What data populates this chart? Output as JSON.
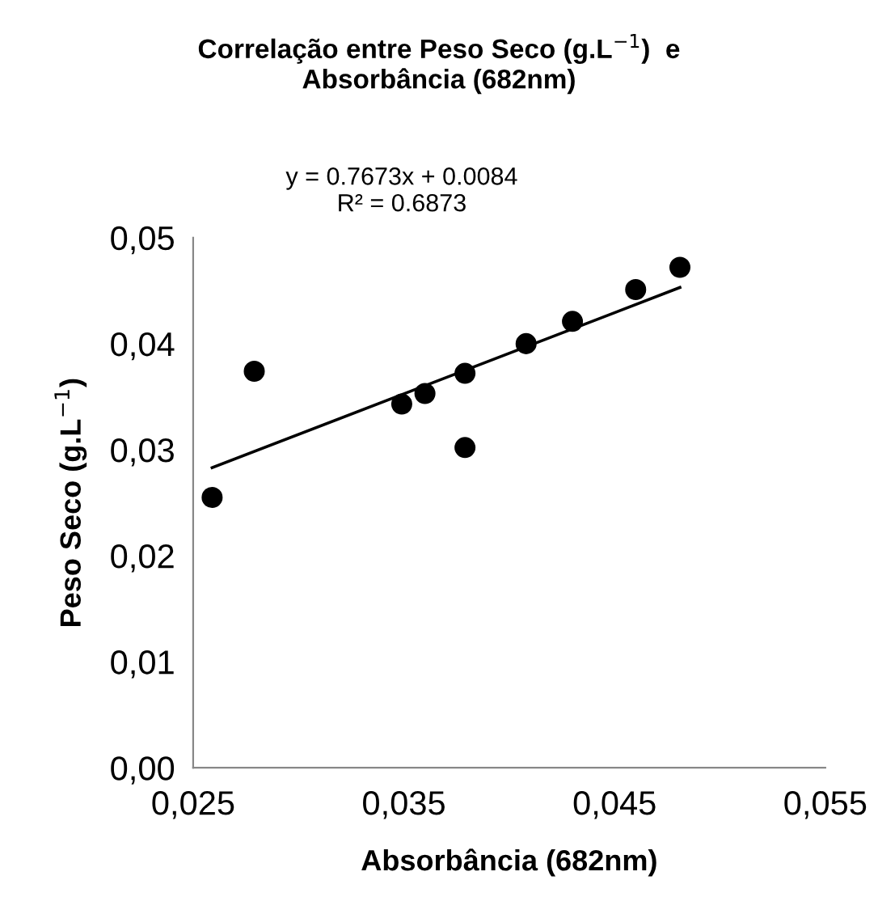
{
  "chart_data": {
    "type": "scatter",
    "title": "Correlação entre Peso Seco (g.L$^{−1}$)  e\nAbsorbância (682nm)",
    "xlabel": "Absorbância (682nm)",
    "ylabel": "Peso Seco (g.L$^{−1}$)",
    "x": [
      0.0259,
      0.0279,
      0.0349,
      0.036,
      0.0379,
      0.0379,
      0.0408,
      0.043,
      0.046,
      0.0481
    ],
    "series": [
      {
        "marker": "circle",
        "color": "#000000",
        "values": [
          0.0255,
          0.0374,
          0.0343,
          0.0353,
          0.0372,
          0.0302,
          0.04,
          0.0421,
          0.0451,
          0.0472
        ]
      },
      {
        "type": "line",
        "marker": "none",
        "color": "#000000",
        "x": [
          0.0259,
          0.0481
        ],
        "values": [
          0.0283,
          0.0453
        ]
      }
    ],
    "annotations": [
      "y = 0.7673x + 0.0084\nR² = 0.6873"
    ],
    "xlim": [
      0.025,
      0.055
    ],
    "xticks": [
      {
        "value": 0.025,
        "label": "0,025"
      },
      {
        "value": 0.035,
        "label": "0,035"
      },
      {
        "value": 0.045,
        "label": "0,045"
      },
      {
        "value": 0.055,
        "label": "0,055"
      }
    ],
    "ylim": [
      0,
      0.05
    ],
    "yticks": [
      {
        "value": 0,
        "label": "0,00"
      },
      {
        "value": 0.01,
        "label": "0,01"
      },
      {
        "value": 0.02,
        "label": "0,02"
      },
      {
        "value": 0.03,
        "label": "0,03"
      },
      {
        "value": 0.04,
        "label": "0,04"
      },
      {
        "value": 0.05,
        "label": "0,05"
      }
    ],
    "grid": false,
    "legend": false
  }
}
